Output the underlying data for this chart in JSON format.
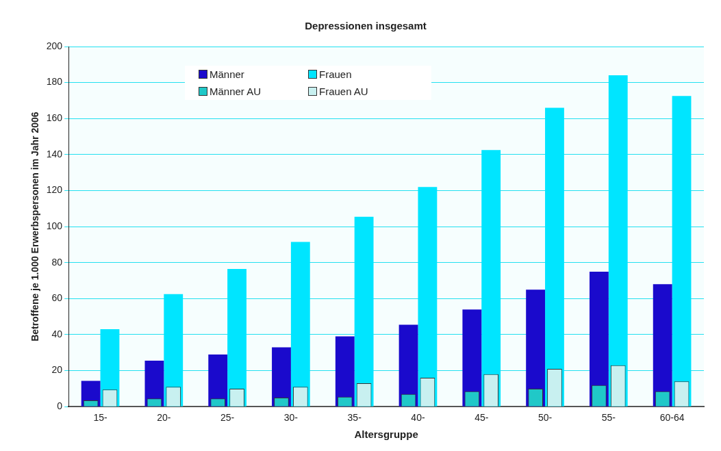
{
  "chart_data": {
    "type": "bar",
    "title": "Depressionen insgesamt",
    "xlabel": "Altersgruppe",
    "ylabel": "Betroffene je 1.000 Erwerbspersonen im Jahr 2006",
    "categories": [
      "15-",
      "20-",
      "25-",
      "30-",
      "35-",
      "40-",
      "45-",
      "50-",
      "55-",
      "60-64"
    ],
    "series": [
      {
        "name": "Männer",
        "color": "#1a0acc",
        "values": [
          14.3,
          25.5,
          29,
          33,
          39,
          45.5,
          54,
          65,
          75,
          68
        ]
      },
      {
        "name": "Frauen",
        "color": "#00e5ff",
        "values": [
          43,
          62.5,
          76.5,
          91.5,
          105.5,
          122,
          142.5,
          166,
          184,
          172.5
        ]
      },
      {
        "name": "Männer AU",
        "color": "#20c8c8",
        "values": [
          3.5,
          4.5,
          4.5,
          5,
          5.5,
          7,
          8.5,
          10,
          12,
          8.5
        ]
      },
      {
        "name": "Frauen AU",
        "color": "#c8f0f0",
        "values": [
          9.5,
          11,
          10,
          11,
          13,
          16,
          18,
          21,
          23,
          14
        ]
      }
    ],
    "ylim": [
      0,
      200
    ],
    "yticks": [
      0,
      20,
      40,
      60,
      80,
      100,
      120,
      140,
      160,
      180,
      200
    ],
    "grid": "y",
    "legend": "top left"
  }
}
